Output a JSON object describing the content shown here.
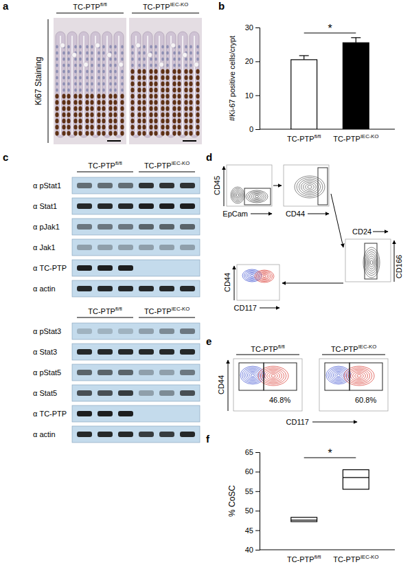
{
  "chart_data": [
    {
      "type": "image",
      "panel": "a",
      "y_label": "Ki67 Staining",
      "groups": [
        "TC-PTP",
        "TC-PTP"
      ],
      "group_superscripts": [
        "fl/fl",
        "IEC-KO"
      ]
    },
    {
      "type": "bar",
      "panel": "b",
      "y_label": "#Ki-67 positive cells/crypt",
      "categories": [
        "TC-PTP",
        "TC-PTP"
      ],
      "category_superscripts": [
        "fl/fl",
        "IEC-KO"
      ],
      "values": [
        20.5,
        25.5
      ],
      "errors": [
        1.2,
        1.5
      ],
      "colors": [
        "#ffffff",
        "#000000"
      ],
      "ylim": [
        0,
        30
      ],
      "yticks": [
        0,
        10,
        20,
        30
      ],
      "annotations": [
        "*"
      ]
    },
    {
      "type": "blot",
      "panel": "c",
      "blots": [
        {
          "groups": [
            "TC-PTP",
            "TC-PTP"
          ],
          "group_superscripts": [
            "fl/fl",
            "IEC-KO"
          ],
          "rows": [
            {
              "label": "α pStat1",
              "bands": [
                0.55,
                0.55,
                0.55,
                0.85,
                0.85,
                0.85
              ]
            },
            {
              "label": "α Stat1",
              "bands": [
                0.9,
                0.9,
                0.9,
                0.95,
                0.95,
                0.95
              ]
            },
            {
              "label": "α pJak1",
              "bands": [
                0.5,
                0.5,
                0.5,
                0.6,
                0.6,
                0.6
              ]
            },
            {
              "label": "α Jak1",
              "bands": [
                0.3,
                0.3,
                0.3,
                0.3,
                0.3,
                0.3
              ]
            },
            {
              "label": "α TC-PTP",
              "bands": [
                0.95,
                0.95,
                0.95,
                0,
                0,
                0
              ]
            },
            {
              "label": "α actin",
              "bands": [
                0.9,
                0.9,
                0.9,
                0.9,
                0.9,
                0.9
              ]
            }
          ]
        },
        {
          "groups": [
            "TC-PTP",
            "TC-PTP"
          ],
          "group_superscripts": [
            "fl/fl",
            "IEC-KO"
          ],
          "rows": [
            {
              "label": "α pStat3",
              "bands": [
                0.2,
                0.2,
                0.2,
                0.3,
                0.4,
                0.5
              ]
            },
            {
              "label": "α Stat3",
              "bands": [
                0.9,
                0.9,
                0.9,
                0.9,
                0.9,
                0.9
              ]
            },
            {
              "label": "α pStat5",
              "bands": [
                0.6,
                0.6,
                0.6,
                0.3,
                0.3,
                0.5
              ]
            },
            {
              "label": "α Stat5",
              "bands": [
                0.7,
                0.7,
                0.8,
                0.3,
                0.4,
                0.7
              ]
            },
            {
              "label": "α TC-PTP",
              "bands": [
                0.95,
                0.95,
                0.95,
                0,
                0,
                0
              ]
            },
            {
              "label": "α actin",
              "bands": [
                0.9,
                0.9,
                0.9,
                0.8,
                0.8,
                0.9
              ]
            }
          ]
        }
      ]
    },
    {
      "type": "flow",
      "panel": "d",
      "plots": [
        {
          "x_label": "EpCam",
          "y_label": "CD45"
        },
        {
          "x_label": "CD44"
        },
        {
          "x_label": "CD24",
          "y_label": "CD166"
        },
        {
          "x_label": "CD117",
          "y_label": "CD44"
        }
      ]
    },
    {
      "type": "flow",
      "panel": "e",
      "groups": [
        "TC-PTP",
        "TC-PTP"
      ],
      "group_superscripts": [
        "fl/fl",
        "IEC-KO"
      ],
      "x_label": "CD117",
      "y_label": "CD44",
      "annotations": [
        "46.8%",
        "60.8%"
      ]
    },
    {
      "type": "box",
      "panel": "f",
      "y_label": "% CoSC",
      "categories": [
        "TC-PTP",
        "TC-PTP"
      ],
      "category_superscripts": [
        "fl/fl",
        "IEC-KO"
      ],
      "q1": [
        47.2,
        55.5
      ],
      "median": [
        47.6,
        58.5
      ],
      "q3": [
        48.3,
        60.5
      ],
      "ylim": [
        40,
        65
      ],
      "yticks": [
        40,
        45,
        50,
        55,
        60,
        65
      ],
      "annotations": [
        "*"
      ]
    }
  ]
}
